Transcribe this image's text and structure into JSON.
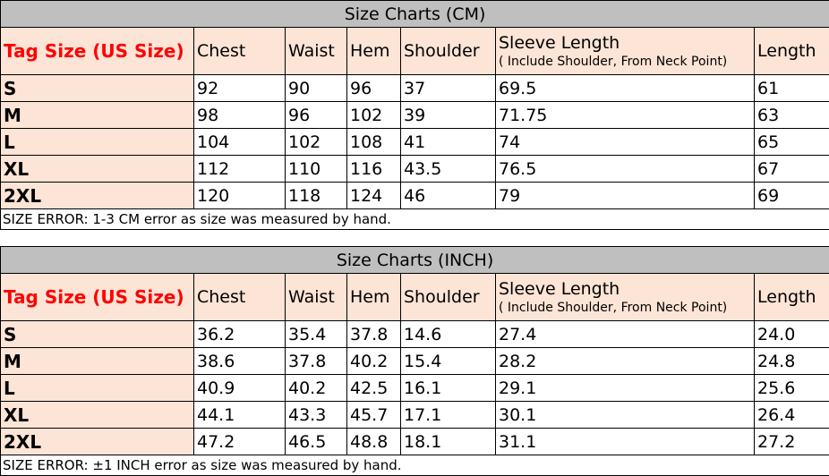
{
  "tables": [
    {
      "title": "Size Charts (CM)",
      "headers": {
        "tag": "Tag Size (US Size)",
        "chest": "Chest",
        "waist": "Waist",
        "hem": "Hem",
        "shoulder": "Shoulder",
        "sleeve": "Sleeve Length",
        "sleeve_note": "( Include Shoulder, From Neck Point)",
        "length": "Length"
      },
      "rows": [
        [
          "S",
          "92",
          "90",
          "96",
          "37",
          "69.5",
          "61"
        ],
        [
          "M",
          "98",
          "96",
          "102",
          "39",
          "71.75",
          "63"
        ],
        [
          "L",
          "104",
          "102",
          "108",
          "41",
          "74",
          "65"
        ],
        [
          "XL",
          "112",
          "110",
          "116",
          "43.5",
          "76.5",
          "67"
        ],
        [
          "2XL",
          "120",
          "118",
          "124",
          "46",
          "79",
          "69"
        ]
      ],
      "note": "SIZE ERROR: 1-3 CM error as size was measured by hand."
    },
    {
      "title": "Size Charts (INCH)",
      "headers": {
        "tag": "Tag Size (US Size)",
        "chest": "Chest",
        "waist": "Waist",
        "hem": "Hem",
        "shoulder": "Shoulder",
        "sleeve": "Sleeve Length",
        "sleeve_note": "( Include Shoulder, From Neck Point)",
        "length": "Length"
      },
      "rows": [
        [
          "S",
          "36.2",
          "35.4",
          "37.8",
          "14.6",
          "27.4",
          "24.0"
        ],
        [
          "M",
          "38.6",
          "37.8",
          "40.2",
          "15.4",
          "28.2",
          "24.8"
        ],
        [
          "L",
          "40.9",
          "40.2",
          "42.5",
          "16.1",
          "29.1",
          "25.6"
        ],
        [
          "XL",
          "44.1",
          "43.3",
          "45.7",
          "17.1",
          "30.1",
          "26.4"
        ],
        [
          "2XL",
          "47.2",
          "46.5",
          "48.8",
          "18.1",
          "31.1",
          "27.2"
        ]
      ],
      "note": "SIZE ERROR: ±1 INCH error as size was measured by hand."
    }
  ],
  "colors": {
    "title_bg": "#bfbfbf",
    "header_bg": "#fce4d6",
    "tag_text": "#ff0000"
  }
}
